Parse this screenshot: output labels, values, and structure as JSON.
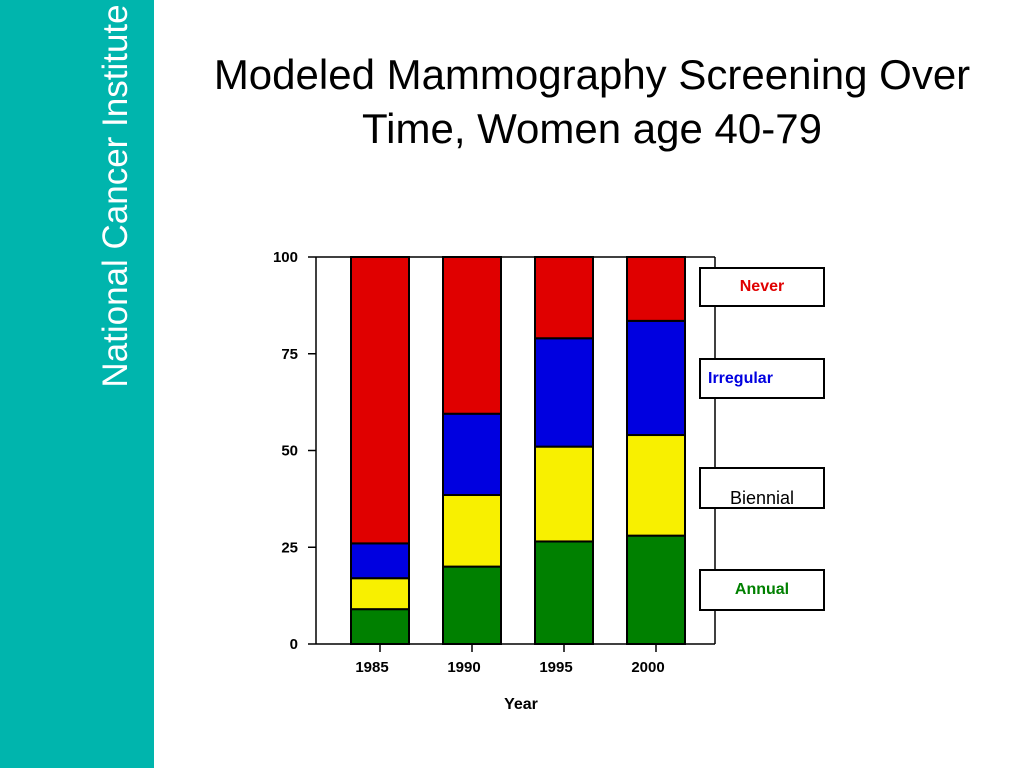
{
  "sidebar": {
    "text": "National Cancer Institute"
  },
  "slide": {
    "title_line1": "Modeled Mammography Screening Over",
    "title_line2": "Time, Women age 40-79"
  },
  "colors": {
    "sidebar": "#00b5ad",
    "Annual": "#008000",
    "Biennial": "#f8f000",
    "Irregular": "#0000e0",
    "Never": "#e00000"
  },
  "chart_data": {
    "type": "bar",
    "stacked": true,
    "categories": [
      "1985",
      "1990",
      "1995",
      "2000"
    ],
    "xlabel": "Year",
    "ylabel": "",
    "ylim": [
      0,
      100
    ],
    "yticks": [
      0,
      25,
      50,
      75,
      100
    ],
    "grid": false,
    "legend_position": "right",
    "series": [
      {
        "name": "Annual",
        "values": [
          9,
          20,
          26.5,
          28
        ]
      },
      {
        "name": "Biennial",
        "values": [
          8,
          18.5,
          24.5,
          26
        ]
      },
      {
        "name": "Irregular",
        "values": [
          9,
          21,
          28,
          29.5
        ]
      },
      {
        "name": "Never",
        "values": [
          74,
          40.5,
          21,
          16.5
        ]
      }
    ]
  }
}
